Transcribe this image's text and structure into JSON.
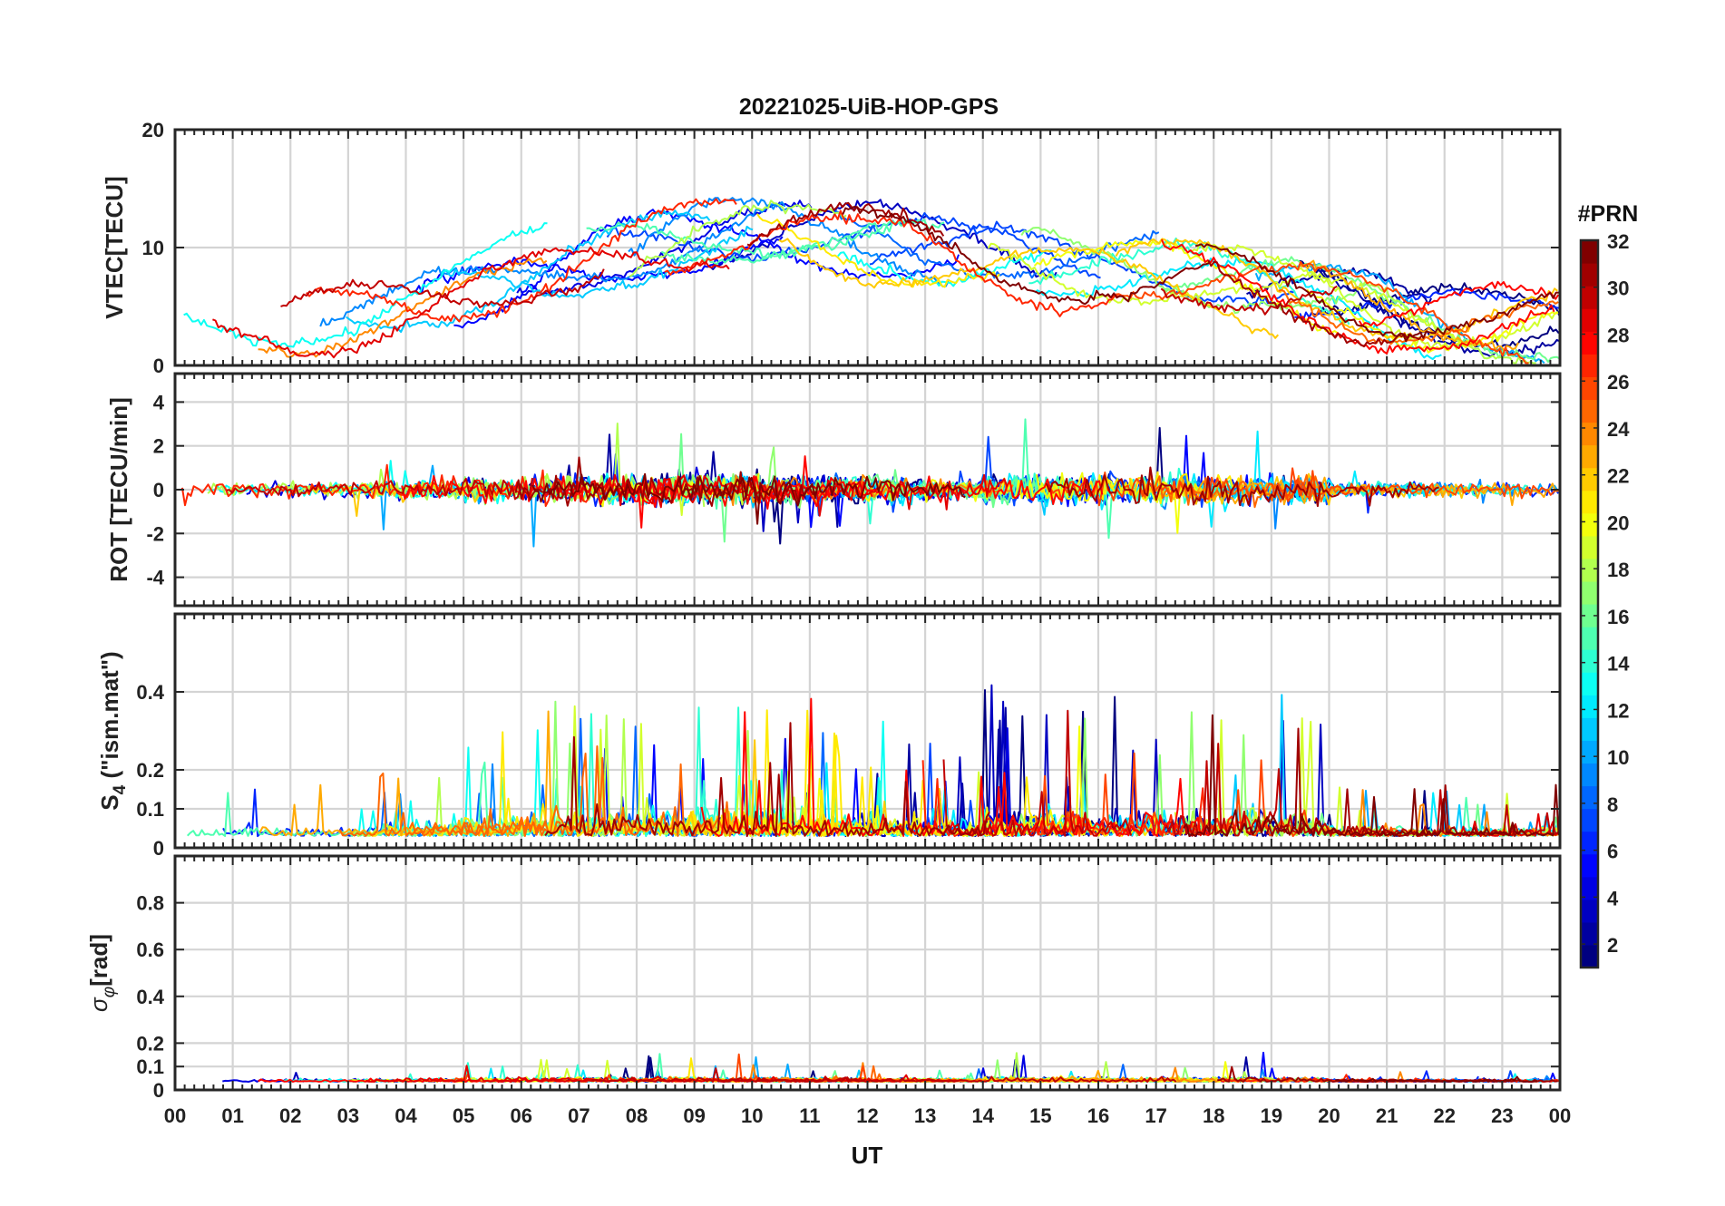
{
  "chart_data": {
    "type": "line",
    "title": "20221025-UiB-HOP-GPS",
    "xlabel": "UT",
    "x_ticks": [
      "00",
      "01",
      "02",
      "03",
      "04",
      "05",
      "06",
      "07",
      "08",
      "09",
      "10",
      "11",
      "12",
      "13",
      "14",
      "15",
      "16",
      "17",
      "18",
      "19",
      "20",
      "21",
      "22",
      "23",
      "00"
    ],
    "xlim": [
      0,
      24
    ],
    "colorbar": {
      "title": "#PRN",
      "range": [
        1,
        32
      ],
      "ticks": [
        "2",
        "4",
        "6",
        "8",
        "10",
        "12",
        "14",
        "16",
        "18",
        "20",
        "22",
        "24",
        "26",
        "28",
        "30",
        "32"
      ],
      "colormap": "jet"
    },
    "panels": [
      {
        "id": "vtec",
        "ylabel": "VTEC[TECU]",
        "ylim": [
          0,
          20
        ],
        "yticks": [
          0,
          10,
          20
        ],
        "ytick_labels": [
          "0",
          "10",
          "20"
        ],
        "description_series": "VTEC per satellite PRN 1-32"
      },
      {
        "id": "rot",
        "ylabel": "ROT [TECU/min]",
        "ylim": [
          -5.3,
          5.3
        ],
        "yticks": [
          -4,
          -2,
          0,
          2,
          4
        ],
        "ytick_labels": [
          "-4",
          "-2",
          "0",
          "2",
          "4"
        ]
      },
      {
        "id": "s4",
        "ylabel_main": "S",
        "ylabel_sub": "4",
        "ylabel_rest": " (\"ism.mat\")",
        "ylim": [
          0,
          0.6
        ],
        "yticks": [
          0,
          0.1,
          0.2,
          0.4
        ],
        "ytick_labels": [
          "0",
          "0.1",
          "0.2",
          "0.4"
        ]
      },
      {
        "id": "sigphi",
        "ylabel_main": "σ",
        "ylabel_sub": "φ",
        "ylabel_rest": "[rad]",
        "ylim": [
          0,
          1
        ],
        "yticks": [
          0,
          0.1,
          0.2,
          0.4,
          0.6,
          0.8
        ],
        "ytick_labels": [
          "0",
          "0.1",
          "0.2",
          "0.4",
          "0.6",
          "0.8"
        ]
      }
    ]
  }
}
